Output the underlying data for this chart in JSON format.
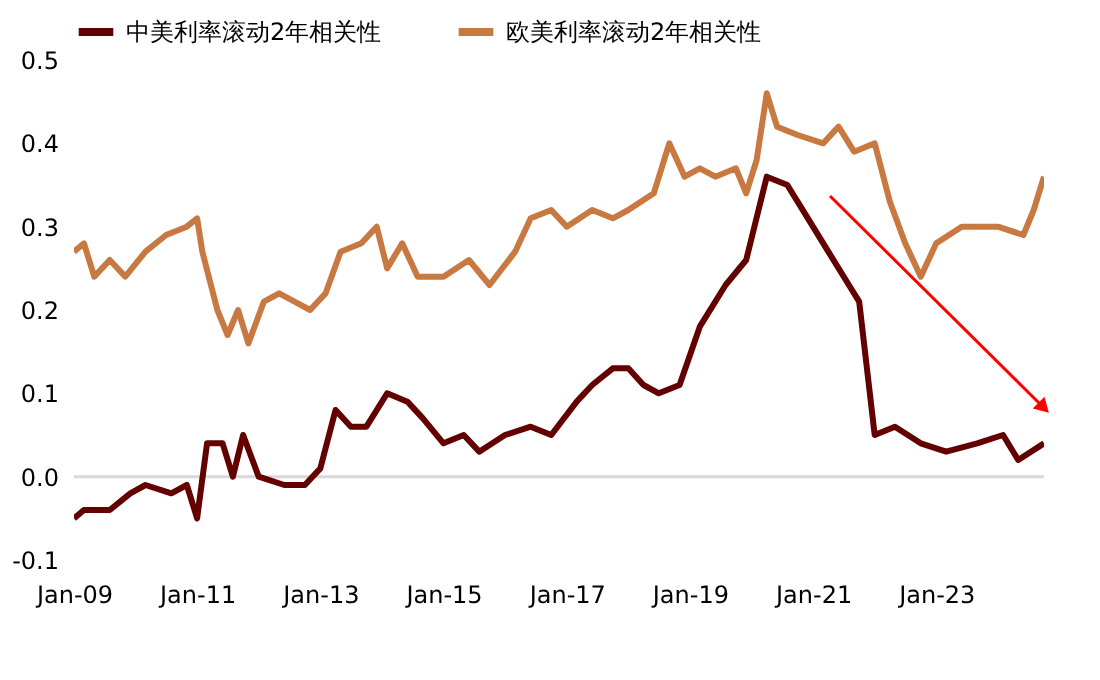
{
  "chart_data": {
    "type": "line",
    "series": [
      {
        "name": "中美利率滚动2年相关性",
        "color": "#630000",
        "x": [
          "2009-01",
          "2009-03",
          "2009-08",
          "2009-12",
          "2010-03",
          "2010-08",
          "2010-11",
          "2011-01",
          "2011-03",
          "2011-06",
          "2011-08",
          "2011-10",
          "2012-01",
          "2012-06",
          "2012-10",
          "2013-01",
          "2013-04",
          "2013-07",
          "2013-10",
          "2014-02",
          "2014-06",
          "2014-09",
          "2015-01",
          "2015-05",
          "2015-08",
          "2016-01",
          "2016-06",
          "2016-10",
          "2017-03",
          "2017-06",
          "2017-10",
          "2018-01",
          "2018-04",
          "2018-07",
          "2018-11",
          "2019-03",
          "2019-08",
          "2019-12",
          "2020-04",
          "2020-08",
          "2020-12",
          "2021-04",
          "2021-08",
          "2021-10",
          "2022-01",
          "2022-05",
          "2022-10",
          "2023-03",
          "2023-09",
          "2024-02",
          "2024-05",
          "2024-10"
        ],
        "values": [
          -0.05,
          -0.04,
          -0.04,
          -0.02,
          -0.01,
          -0.02,
          -0.01,
          -0.05,
          0.04,
          0.04,
          0.0,
          0.05,
          0.0,
          -0.01,
          -0.01,
          0.01,
          0.08,
          0.06,
          0.06,
          0.1,
          0.09,
          0.07,
          0.04,
          0.05,
          0.03,
          0.05,
          0.06,
          0.05,
          0.09,
          0.11,
          0.13,
          0.13,
          0.11,
          0.1,
          0.11,
          0.18,
          0.23,
          0.26,
          0.36,
          0.35,
          0.31,
          0.27,
          0.23,
          0.21,
          0.05,
          0.06,
          0.04,
          0.03,
          0.04,
          0.05,
          0.02,
          0.04
        ]
      },
      {
        "name": "欧美利率滚动2年相关性",
        "color": "#c87941",
        "x": [
          "2009-01",
          "2009-03",
          "2009-05",
          "2009-08",
          "2009-11",
          "2010-03",
          "2010-07",
          "2010-11",
          "2011-01",
          "2011-02",
          "2011-05",
          "2011-07",
          "2011-09",
          "2011-11",
          "2012-02",
          "2012-05",
          "2012-08",
          "2012-11",
          "2013-02",
          "2013-05",
          "2013-09",
          "2013-12",
          "2014-02",
          "2014-05",
          "2014-08",
          "2015-01",
          "2015-06",
          "2015-10",
          "2016-03",
          "2016-06",
          "2016-10",
          "2017-01",
          "2017-06",
          "2017-10",
          "2018-01",
          "2018-06",
          "2018-09",
          "2018-12",
          "2019-03",
          "2019-06",
          "2019-10",
          "2019-12",
          "2020-02",
          "2020-04",
          "2020-06",
          "2020-10",
          "2021-03",
          "2021-06",
          "2021-09",
          "2022-01",
          "2022-04",
          "2022-07",
          "2022-10",
          "2023-01",
          "2023-06",
          "2024-01",
          "2024-06",
          "2024-08",
          "2024-10"
        ],
        "values": [
          0.27,
          0.28,
          0.24,
          0.26,
          0.24,
          0.27,
          0.29,
          0.3,
          0.31,
          0.27,
          0.2,
          0.17,
          0.2,
          0.16,
          0.21,
          0.22,
          0.21,
          0.2,
          0.22,
          0.27,
          0.28,
          0.3,
          0.25,
          0.28,
          0.24,
          0.24,
          0.26,
          0.23,
          0.27,
          0.31,
          0.32,
          0.3,
          0.32,
          0.31,
          0.32,
          0.34,
          0.4,
          0.36,
          0.37,
          0.36,
          0.37,
          0.34,
          0.38,
          0.46,
          0.42,
          0.41,
          0.4,
          0.42,
          0.39,
          0.4,
          0.33,
          0.28,
          0.24,
          0.28,
          0.3,
          0.3,
          0.29,
          0.32,
          0.36
        ]
      }
    ],
    "xlim": [
      "2009-01",
      "2024-10"
    ],
    "xticks": [
      {
        "value": "2009-01",
        "label": "Jan-09"
      },
      {
        "value": "2011-01",
        "label": "Jan-11"
      },
      {
        "value": "2013-01",
        "label": "Jan-13"
      },
      {
        "value": "2015-01",
        "label": "Jan-15"
      },
      {
        "value": "2017-01",
        "label": "Jan-17"
      },
      {
        "value": "2019-01",
        "label": "Jan-19"
      },
      {
        "value": "2021-01",
        "label": "Jan-21"
      },
      {
        "value": "2023-01",
        "label": "Jan-23"
      }
    ],
    "ylim": [
      -0.1,
      0.5
    ],
    "yticks": [
      -0.1,
      {
        "value": 0,
        "label": "0.0"
      },
      0.1,
      0.2,
      0.3,
      0.4,
      0.5
    ],
    "ref_lines": [
      {
        "axis": "y",
        "value": 0,
        "color": "#d9d9d9"
      }
    ],
    "grid": false,
    "legend": "top",
    "marker": "none",
    "line_style": "solid"
  }
}
